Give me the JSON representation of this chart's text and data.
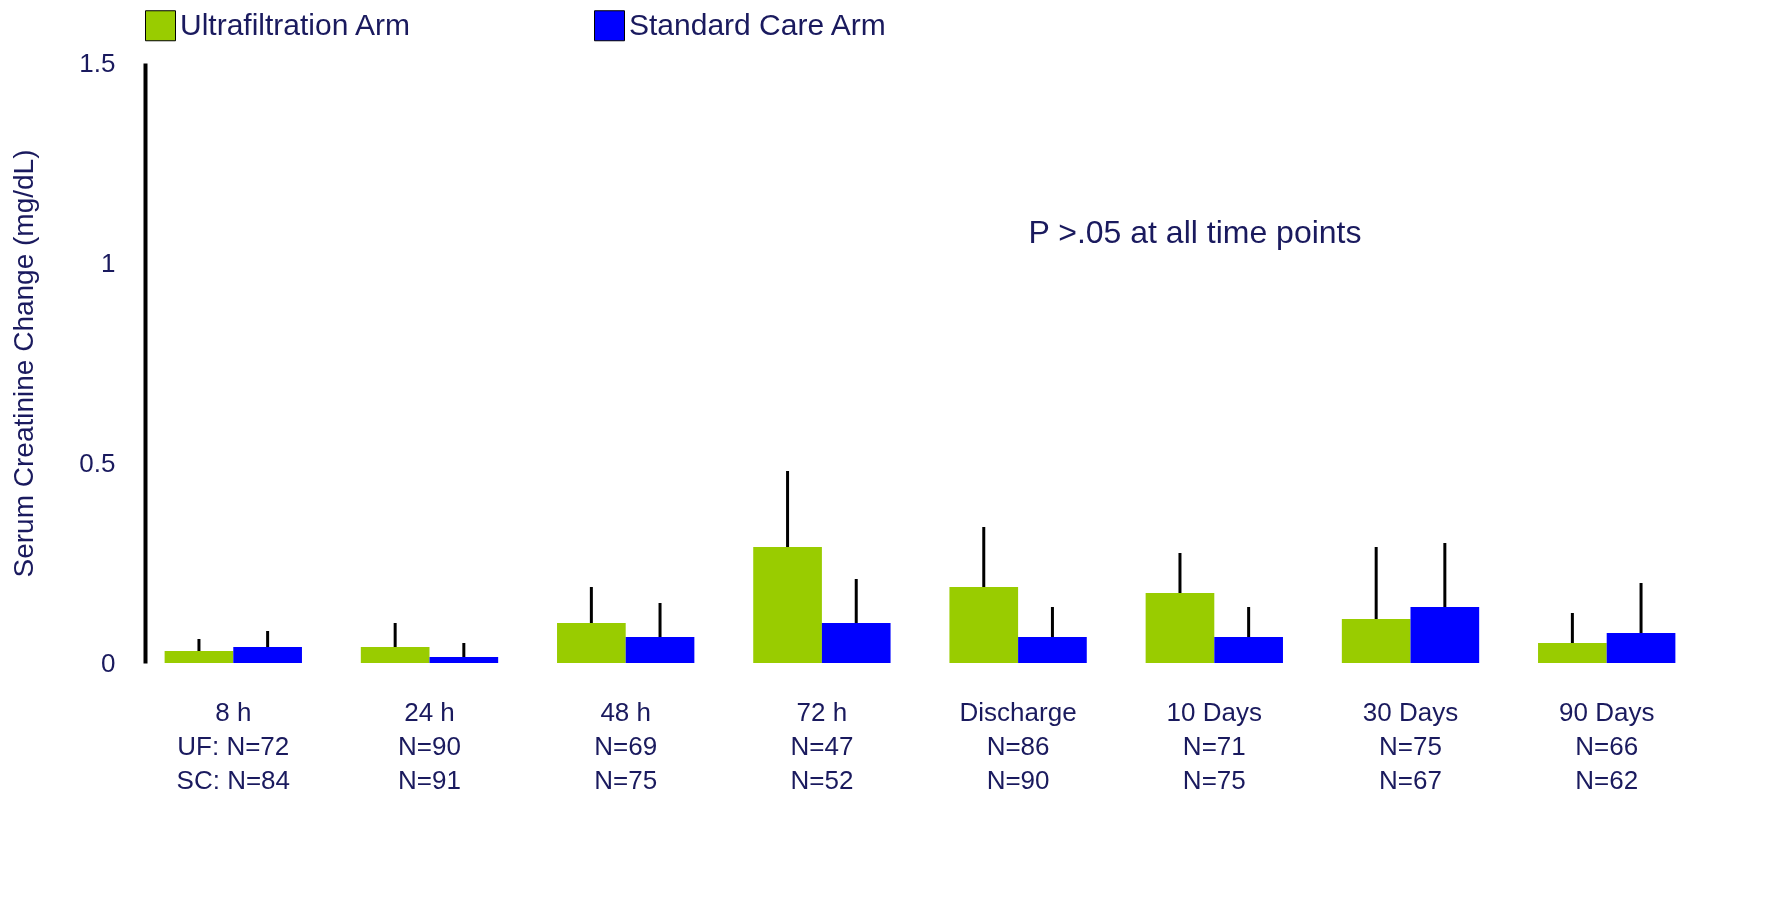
{
  "chart_data": {
    "type": "bar",
    "ylabel": "Serum Creatinine Change (mg/dL)",
    "categories": [
      "8 h\nUF: N=72\nSC: N=84",
      "24 h\nN=90\nN=91",
      "48 h\nN=69\nN=75",
      "72 h\nN=47\nN=52",
      "Discharge\nN=86\nN=90",
      "10 Days\nN=71\nN=75",
      "30 Days\nN=75\nN=67",
      "90 Days\nN=66\nN=62"
    ],
    "series": [
      {
        "name": "Ultrafiltration Arm",
        "color": "#99cc00",
        "values": [
          0.03,
          0.04,
          0.1,
          0.29,
          0.19,
          0.175,
          0.11,
          0.05
        ],
        "errors": [
          [
            0.03,
            0.06
          ],
          [
            0.04,
            0.1
          ],
          [
            0.1,
            0.19
          ],
          [
            0.29,
            0.48
          ],
          [
            0.19,
            0.34
          ],
          [
            0.175,
            0.275
          ],
          [
            0.11,
            0.29
          ],
          [
            0.05,
            0.125
          ]
        ]
      },
      {
        "name": "Standard Care Arm",
        "color": "#0000ff",
        "values": [
          0.04,
          0.015,
          0.065,
          0.1,
          0.065,
          0.065,
          0.14,
          0.075
        ],
        "errors": [
          [
            0.04,
            0.08
          ],
          [
            0.015,
            0.05
          ],
          [
            0.065,
            0.15
          ],
          [
            0.1,
            0.21
          ],
          [
            0.065,
            0.14
          ],
          [
            0.065,
            0.14
          ],
          [
            0.14,
            0.3
          ],
          [
            0.075,
            0.2
          ]
        ]
      }
    ],
    "ylim": [
      0,
      1.5
    ],
    "yticks": [
      0,
      0.5,
      1,
      1.5
    ],
    "grid": false,
    "legend": "top",
    "annotations": [
      "P >.05 at all time points"
    ]
  }
}
